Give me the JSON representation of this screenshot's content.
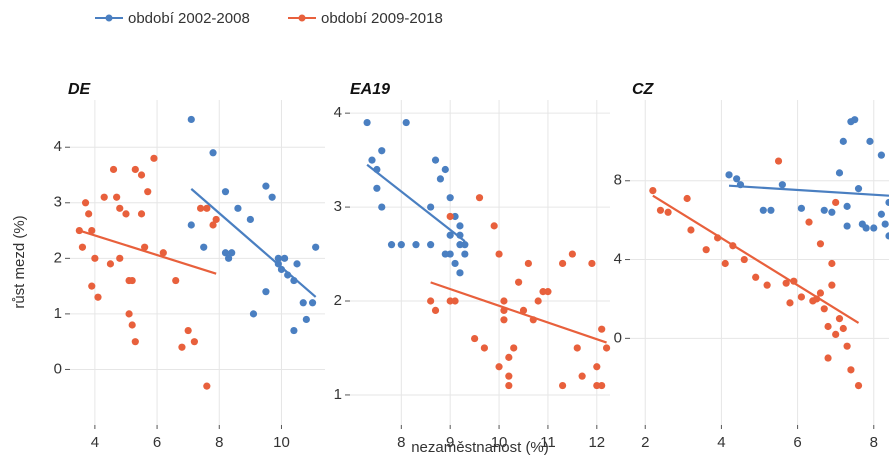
{
  "chart_data": [
    {
      "type": "scatter",
      "title": "DE",
      "ylabel": "růst mezd (%)",
      "xlim": [
        3.2,
        11.4
      ],
      "xticks": [
        4,
        6,
        8,
        10
      ],
      "ylim": [
        -1.0,
        4.85
      ],
      "yticks": [
        0,
        1,
        2,
        3,
        4
      ],
      "grid": true,
      "series": [
        {
          "name": "období 2002-2008",
          "color": "#4a7fc1",
          "x": [
            7.1,
            7.8,
            8.2,
            7.1,
            7.5,
            8.2,
            8.4,
            8.3,
            8.6,
            9.0,
            9.5,
            9.7,
            9.5,
            9.1,
            9.9,
            10.0,
            10.1,
            10.2,
            10.4,
            10.5,
            10.4,
            10.8,
            11.0,
            11.1,
            10.7,
            9.9
          ],
          "values": [
            4.5,
            3.9,
            3.2,
            2.6,
            2.2,
            2.1,
            2.1,
            2.0,
            2.9,
            2.7,
            3.3,
            3.1,
            1.4,
            1.0,
            2.0,
            1.8,
            2.0,
            1.7,
            1.6,
            1.9,
            0.7,
            0.9,
            1.2,
            2.2,
            1.2,
            1.9
          ]
        },
        {
          "name": "období 2009-2018",
          "color": "#e8603c",
          "x": [
            3.5,
            3.6,
            3.7,
            3.8,
            3.9,
            4.0,
            4.1,
            4.3,
            4.5,
            4.6,
            4.7,
            4.8,
            5.0,
            5.1,
            5.1,
            5.2,
            5.3,
            5.3,
            5.5,
            5.5,
            5.6,
            5.7,
            5.9,
            6.2,
            6.6,
            6.8,
            7.0,
            7.2,
            7.4,
            7.6,
            7.8,
            7.9,
            7.6,
            3.9,
            5.2,
            4.8
          ],
          "values": [
            2.5,
            2.2,
            3.0,
            2.8,
            1.5,
            2.0,
            1.3,
            3.1,
            1.9,
            3.6,
            3.1,
            2.9,
            2.8,
            1.6,
            1.0,
            0.8,
            0.5,
            3.6,
            3.5,
            2.8,
            2.2,
            3.2,
            3.8,
            2.1,
            1.6,
            0.4,
            0.7,
            0.5,
            2.9,
            -0.3,
            2.6,
            2.7,
            2.9,
            2.5,
            1.6,
            2.0
          ]
        }
      ]
    },
    {
      "type": "scatter",
      "title": "EA19",
      "xlabel": "nezaměstnanost (%)",
      "xlim": [
        6.95,
        12.27
      ],
      "xticks": [
        8,
        9,
        10,
        11,
        12
      ],
      "ylim": [
        0.68,
        4.14
      ],
      "yticks": [
        1,
        2,
        3,
        4
      ],
      "grid": true,
      "series": [
        {
          "name": "období 2002-2008",
          "color": "#4a7fc1",
          "x": [
            7.3,
            7.4,
            7.5,
            7.5,
            7.6,
            7.6,
            8.1,
            7.8,
            8.0,
            8.3,
            8.6,
            8.6,
            8.7,
            8.8,
            8.9,
            9.0,
            9.0,
            9.0,
            9.1,
            9.1,
            9.2,
            9.2,
            9.3,
            9.3,
            9.2,
            8.9,
            9.2
          ],
          "values": [
            3.9,
            3.5,
            3.4,
            3.2,
            3.0,
            3.6,
            3.9,
            2.6,
            2.6,
            2.6,
            2.6,
            3.0,
            3.5,
            3.3,
            3.4,
            3.1,
            2.5,
            2.7,
            2.9,
            2.4,
            2.3,
            2.6,
            2.6,
            2.5,
            2.8,
            2.5,
            2.7
          ]
        },
        {
          "name": "období 2009-2018",
          "color": "#e8603c",
          "x": [
            8.6,
            8.7,
            9.0,
            9.0,
            9.1,
            9.6,
            9.5,
            9.7,
            9.9,
            10.0,
            10.0,
            10.1,
            10.1,
            10.1,
            10.2,
            10.2,
            10.3,
            10.4,
            10.5,
            10.6,
            10.7,
            10.8,
            10.9,
            11.0,
            11.3,
            11.5,
            11.6,
            11.7,
            11.9,
            12.0,
            12.1,
            12.0,
            12.1,
            12.2,
            10.2,
            11.3
          ],
          "values": [
            2.0,
            1.9,
            2.9,
            2.0,
            2.0,
            3.1,
            1.6,
            1.5,
            2.8,
            2.5,
            1.3,
            1.9,
            1.8,
            2.0,
            1.2,
            1.4,
            1.5,
            2.2,
            1.9,
            2.4,
            1.8,
            2.0,
            2.1,
            2.1,
            2.4,
            2.5,
            1.5,
            1.2,
            2.4,
            1.3,
            1.1,
            1.1,
            1.7,
            1.5,
            1.1,
            1.1
          ]
        }
      ]
    },
    {
      "type": "scatter",
      "title": "CZ",
      "xlim": [
        1.6,
        8.4
      ],
      "xticks": [
        2,
        4,
        6,
        8
      ],
      "ylim": [
        -4.4,
        12.1
      ],
      "yticks": [
        0,
        4,
        8
      ],
      "grid": true,
      "series": [
        {
          "name": "období 2002-2008",
          "color": "#4a7fc1",
          "x": [
            4.2,
            4.4,
            4.5,
            5.1,
            5.3,
            5.6,
            6.1,
            6.7,
            6.9,
            7.1,
            7.2,
            7.3,
            7.4,
            7.5,
            7.6,
            7.7,
            7.8,
            7.9,
            8.0,
            8.2,
            8.3,
            8.2,
            8.4,
            8.4,
            7.3
          ],
          "values": [
            8.3,
            8.1,
            7.8,
            6.5,
            6.5,
            7.8,
            6.6,
            6.5,
            6.4,
            8.4,
            10,
            5.7,
            11,
            11.1,
            7.6,
            5.8,
            5.6,
            10,
            5.6,
            9.3,
            5.8,
            6.3,
            6.9,
            5.2,
            6.7
          ]
        },
        {
          "name": "období 2009-2018",
          "color": "#e8603c",
          "x": [
            2.2,
            2.4,
            2.6,
            3.1,
            3.2,
            3.6,
            3.9,
            4.1,
            4.3,
            4.6,
            4.9,
            5.2,
            5.5,
            5.7,
            5.8,
            5.9,
            6.1,
            6.4,
            6.5,
            6.6,
            6.6,
            6.7,
            6.8,
            6.9,
            6.9,
            7.0,
            7.0,
            6.8,
            7.2,
            7.3,
            7.4,
            7.6,
            7.1,
            6.3
          ],
          "values": [
            7.5,
            6.5,
            6.4,
            7.1,
            5.5,
            4.5,
            5.1,
            3.8,
            4.7,
            4.0,
            3.1,
            2.7,
            9,
            2.8,
            1.8,
            2.9,
            2.1,
            1.9,
            2.0,
            2.3,
            4.8,
            1.5,
            0.6,
            3.8,
            2.7,
            0.2,
            6.9,
            -1,
            0.5,
            -0.4,
            -1.6,
            -2.4,
            1.0,
            5.9
          ]
        }
      ]
    }
  ]
}
